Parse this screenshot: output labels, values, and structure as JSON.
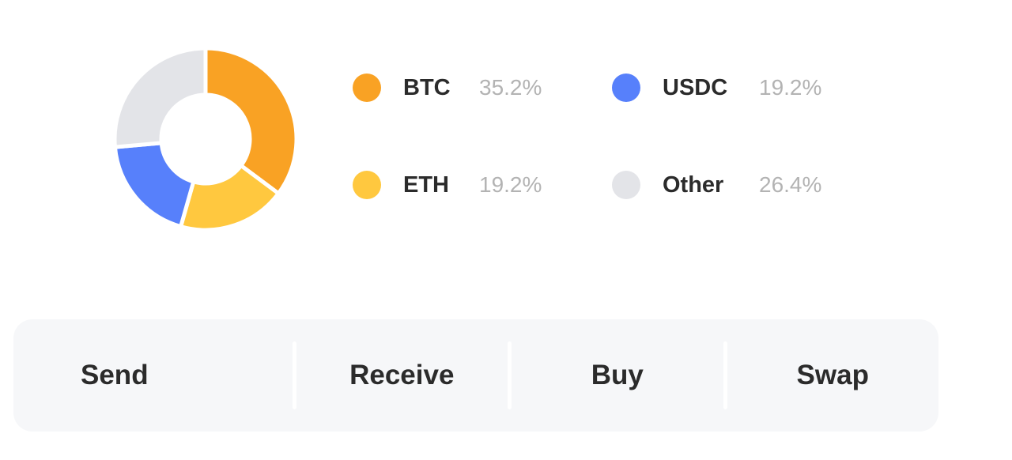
{
  "chart_data": {
    "type": "pie",
    "categories": [
      "BTC",
      "ETH",
      "USDC",
      "Other"
    ],
    "values": [
      35.2,
      19.2,
      19.2,
      26.4
    ],
    "colors": [
      "#f9a224",
      "#ffc83f",
      "#5780fb",
      "#e3e4e8"
    ],
    "donut": true
  },
  "legend": [
    {
      "label": "BTC",
      "percent": "35.2%",
      "color": "#f9a224"
    },
    {
      "label": "USDC",
      "percent": "19.2%",
      "color": "#5780fb"
    },
    {
      "label": "ETH",
      "percent": "19.2%",
      "color": "#ffc83f"
    },
    {
      "label": "Other",
      "percent": "26.4%",
      "color": "#e3e4e8"
    }
  ],
  "actions": {
    "send": "Send",
    "receive": "Receive",
    "buy": "Buy",
    "swap": "Swap"
  }
}
